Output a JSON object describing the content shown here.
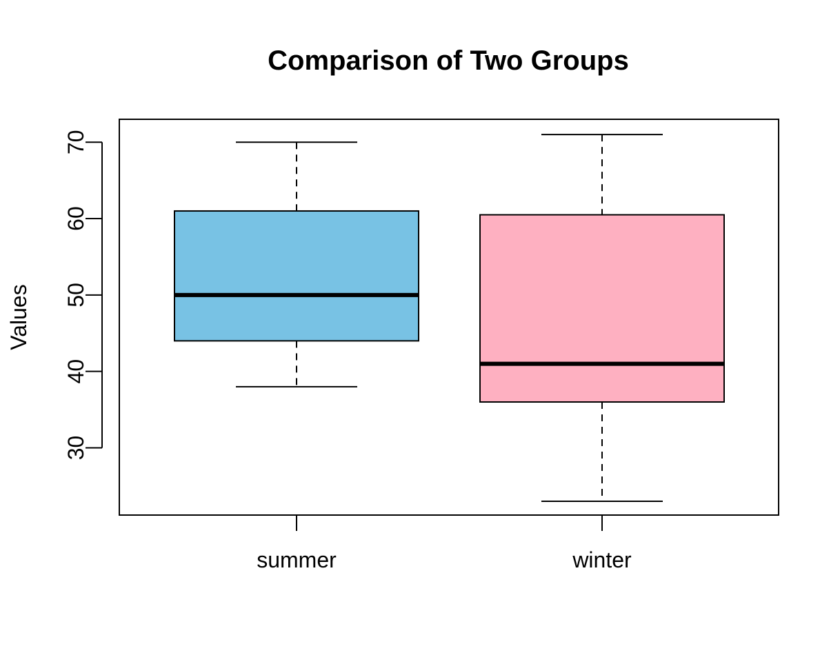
{
  "chart_data": {
    "type": "boxplot",
    "title": "Comparison of Two Groups",
    "xlabel": "",
    "ylabel": "Values",
    "ylim": [
      21.2,
      73.0
    ],
    "yticks": [
      30,
      40,
      50,
      60,
      70
    ],
    "grid": false,
    "categories": [
      "summer",
      "winter"
    ],
    "boxes": [
      {
        "category": "summer",
        "whisker_low": 38,
        "q1": 44,
        "median": 50,
        "q3": 61,
        "whisker_high": 70,
        "color": "#78c2e4"
      },
      {
        "category": "winter",
        "whisker_low": 23,
        "q1": 36,
        "median": 41,
        "q3": 60.5,
        "whisker_high": 71,
        "color": "#feb0c1"
      }
    ]
  }
}
